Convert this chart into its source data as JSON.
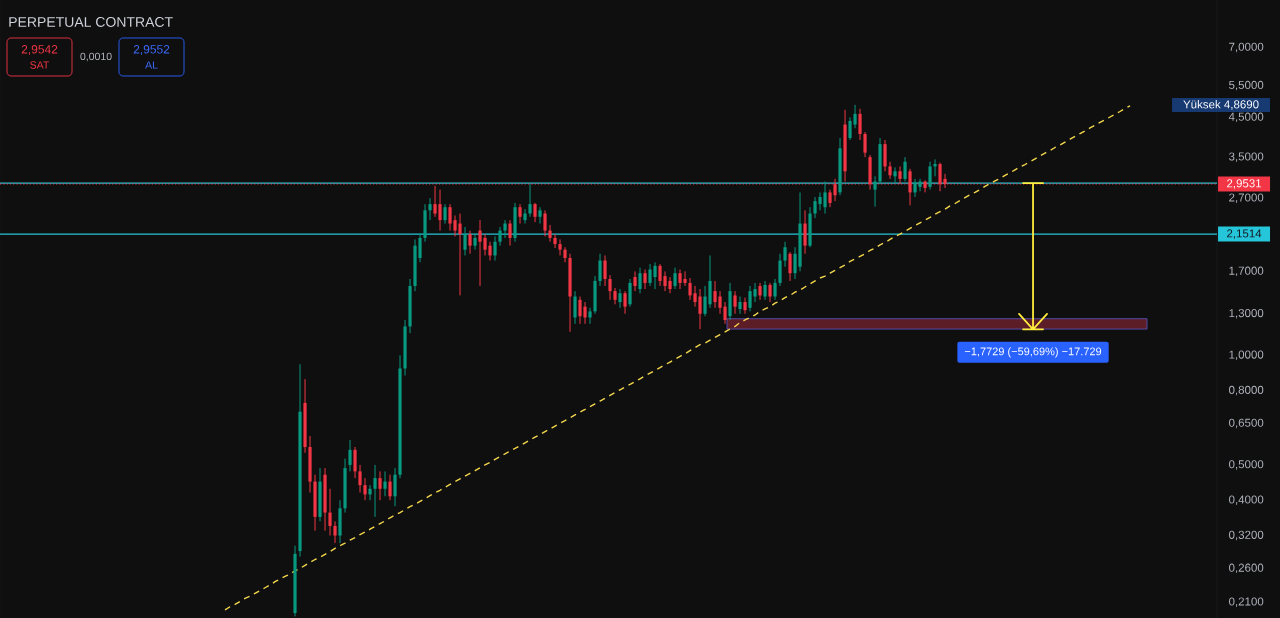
{
  "chart_data": {
    "type": "candlestick",
    "title": "PERPETUAL CONTRACT",
    "categories": [
      null,
      null,
      null,
      null,
      null,
      null,
      null,
      null,
      null,
      null,
      null,
      null,
      null,
      null,
      null,
      null,
      null,
      null,
      null,
      null,
      null,
      null,
      null,
      null,
      null,
      null,
      null,
      null,
      null,
      null,
      null,
      null,
      null,
      null,
      null,
      null,
      null,
      null,
      null,
      null,
      null,
      null,
      null,
      null,
      null,
      null,
      null,
      null,
      null,
      null,
      null,
      null,
      null,
      null,
      null,
      null,
      null,
      null,
      null,
      null,
      null,
      null,
      null,
      null,
      null,
      null,
      null,
      null,
      null,
      null,
      null,
      null,
      null,
      null,
      null,
      null,
      null,
      null,
      null,
      null,
      null,
      null,
      null,
      null,
      null,
      null,
      null,
      null,
      null,
      null,
      null,
      null,
      null,
      null,
      null,
      null,
      null,
      null,
      null,
      null,
      null,
      null,
      null,
      null,
      null,
      null,
      null,
      null,
      null,
      null,
      null,
      null,
      null,
      null,
      null,
      null,
      null,
      null,
      null,
      null,
      null,
      null,
      null,
      null,
      null,
      null,
      null,
      null,
      null,
      null,
      null,
      null,
      null,
      null,
      null,
      null,
      null,
      null,
      null,
      null,
      null,
      null,
      null,
      null,
      null,
      null,
      null,
      null,
      null,
      null,
      null,
      null,
      null,
      null,
      null,
      null,
      null,
      null,
      null,
      null,
      null,
      null,
      null,
      null,
      null,
      null,
      null,
      null,
      null,
      null,
      null,
      null,
      null,
      null,
      null,
      null,
      null,
      null,
      null,
      null,
      null,
      null
    ],
    "ohlc": [
      null,
      null,
      null,
      null,
      null,
      null,
      null,
      null,
      null,
      null,
      null,
      null,
      null,
      null,
      [
        0.196,
        0.3,
        0.192,
        0.285
      ],
      [
        0.29,
        0.945,
        0.28,
        0.7
      ],
      [
        0.74,
        0.86,
        0.54,
        0.56
      ],
      [
        0.56,
        0.6,
        0.42,
        0.45
      ],
      [
        0.45,
        0.47,
        0.33,
        0.36
      ],
      [
        0.36,
        0.49,
        0.35,
        0.45
      ],
      [
        0.47,
        0.49,
        0.33,
        0.37
      ],
      [
        0.37,
        0.43,
        0.32,
        0.34
      ],
      [
        0.34,
        0.35,
        0.305,
        0.32
      ],
      [
        0.32,
        0.4,
        0.305,
        0.38
      ],
      [
        0.38,
        0.52,
        0.37,
        0.49
      ],
      [
        0.5,
        0.585,
        0.48,
        0.55
      ],
      [
        0.55,
        0.56,
        0.46,
        0.48
      ],
      [
        0.48,
        0.5,
        0.42,
        0.44
      ],
      [
        0.44,
        0.46,
        0.4,
        0.415
      ],
      [
        0.415,
        0.44,
        0.4,
        0.43
      ],
      [
        0.43,
        0.5,
        0.36,
        0.46
      ],
      [
        0.46,
        0.48,
        0.4,
        0.43
      ],
      [
        0.43,
        0.48,
        0.41,
        0.45
      ],
      [
        0.45,
        0.47,
        0.4,
        0.41
      ],
      [
        0.41,
        0.49,
        0.385,
        0.47
      ],
      [
        0.47,
        1.0,
        0.46,
        0.92
      ],
      [
        0.92,
        1.25,
        0.88,
        1.2
      ],
      [
        1.2,
        1.62,
        1.15,
        1.55
      ],
      [
        1.55,
        2.08,
        1.5,
        2.0
      ],
      [
        1.85,
        2.16,
        1.8,
        2.1
      ],
      [
        2.1,
        2.6,
        2.05,
        2.5
      ],
      [
        2.5,
        2.7,
        2.35,
        2.6
      ],
      [
        2.6,
        2.92,
        2.4,
        2.45
      ],
      [
        2.6,
        2.85,
        2.2,
        2.35
      ],
      [
        2.35,
        2.6,
        2.3,
        2.55
      ],
      [
        2.55,
        2.6,
        2.2,
        2.3
      ],
      [
        2.35,
        2.42,
        2.12,
        2.2
      ],
      [
        2.3,
        2.45,
        1.46,
        2.15
      ],
      [
        1.95,
        2.25,
        1.88,
        2.15
      ],
      [
        2.15,
        2.2,
        1.9,
        2.0
      ],
      [
        2.0,
        2.15,
        1.95,
        2.1
      ],
      [
        2.2,
        2.35,
        1.55,
        2.05
      ],
      [
        2.1,
        2.15,
        1.88,
        1.95
      ],
      [
        2.0,
        2.05,
        1.82,
        1.88
      ],
      [
        1.88,
        2.12,
        1.82,
        2.05
      ],
      [
        2.05,
        2.25,
        2.0,
        2.2
      ],
      [
        2.2,
        2.35,
        2.1,
        2.3
      ],
      [
        2.3,
        2.35,
        2.0,
        2.1
      ],
      [
        2.1,
        2.62,
        2.05,
        2.55
      ],
      [
        2.55,
        2.6,
        2.3,
        2.4
      ],
      [
        2.35,
        2.52,
        2.3,
        2.45
      ],
      [
        2.45,
        2.95,
        2.4,
        2.6
      ],
      [
        2.6,
        2.62,
        2.32,
        2.4
      ],
      [
        2.4,
        2.55,
        2.3,
        2.5
      ],
      [
        2.45,
        2.5,
        2.12,
        2.2
      ],
      [
        2.2,
        2.28,
        2.05,
        2.1
      ],
      [
        2.1,
        2.15,
        1.97,
        2.02
      ],
      [
        2.02,
        2.08,
        1.88,
        1.95
      ],
      [
        1.95,
        1.98,
        1.8,
        1.85
      ],
      [
        1.85,
        1.9,
        1.16,
        1.45
      ],
      [
        1.27,
        1.5,
        1.22,
        1.45
      ],
      [
        1.42,
        1.45,
        1.22,
        1.28
      ],
      [
        1.36,
        1.4,
        1.22,
        1.27
      ],
      [
        1.27,
        1.35,
        1.22,
        1.32
      ],
      [
        1.32,
        1.65,
        1.3,
        1.6
      ],
      [
        1.6,
        1.9,
        1.55,
        1.82
      ],
      [
        1.82,
        1.88,
        1.55,
        1.62
      ],
      [
        1.62,
        1.66,
        1.42,
        1.5
      ],
      [
        1.5,
        1.53,
        1.38,
        1.42
      ],
      [
        1.4,
        1.52,
        1.35,
        1.48
      ],
      [
        1.48,
        1.5,
        1.3,
        1.36
      ],
      [
        1.38,
        1.62,
        1.36,
        1.58
      ],
      [
        1.64,
        1.7,
        1.5,
        1.55
      ],
      [
        1.52,
        1.74,
        1.48,
        1.68
      ],
      [
        1.68,
        1.72,
        1.52,
        1.58
      ],
      [
        1.58,
        1.78,
        1.55,
        1.72
      ],
      [
        1.64,
        1.8,
        1.52,
        1.76
      ],
      [
        1.76,
        1.78,
        1.55,
        1.6
      ],
      [
        1.65,
        1.7,
        1.5,
        1.55
      ],
      [
        1.6,
        1.64,
        1.48,
        1.52
      ],
      [
        1.55,
        1.74,
        1.52,
        1.68
      ],
      [
        1.68,
        1.72,
        1.52,
        1.58
      ],
      [
        1.62,
        1.7,
        1.55,
        1.58
      ],
      [
        1.58,
        1.63,
        1.42,
        1.46
      ],
      [
        1.48,
        1.55,
        1.36,
        1.4
      ],
      [
        1.45,
        1.52,
        1.18,
        1.3
      ],
      [
        1.3,
        1.55,
        1.28,
        1.45
      ],
      [
        1.38,
        1.88,
        1.35,
        1.6
      ],
      [
        1.5,
        1.6,
        1.35,
        1.4
      ],
      [
        1.45,
        1.5,
        1.3,
        1.35
      ],
      [
        1.36,
        1.4,
        1.22,
        1.25
      ],
      [
        1.28,
        1.58,
        1.25,
        1.5
      ],
      [
        1.46,
        1.5,
        1.3,
        1.36
      ],
      [
        1.34,
        1.45,
        1.3,
        1.4
      ],
      [
        1.4,
        1.44,
        1.3,
        1.33
      ],
      [
        1.35,
        1.55,
        1.32,
        1.5
      ],
      [
        1.45,
        1.58,
        1.4,
        1.52
      ],
      [
        1.55,
        1.58,
        1.42,
        1.46
      ],
      [
        1.45,
        1.6,
        1.42,
        1.56
      ],
      [
        1.56,
        1.58,
        1.4,
        1.45
      ],
      [
        1.45,
        1.62,
        1.42,
        1.58
      ],
      [
        1.58,
        1.9,
        1.55,
        1.82
      ],
      [
        1.82,
        2.05,
        1.75,
        1.98
      ],
      [
        1.9,
        1.92,
        1.6,
        1.68
      ],
      [
        1.68,
        1.98,
        1.62,
        1.9
      ],
      [
        1.75,
        2.8,
        1.7,
        2.3
      ],
      [
        2.3,
        2.5,
        1.9,
        2.0
      ],
      [
        2.0,
        2.55,
        1.98,
        2.45
      ],
      [
        2.45,
        2.72,
        2.38,
        2.65
      ],
      [
        2.6,
        2.8,
        2.5,
        2.72
      ],
      [
        2.55,
        3.0,
        2.45,
        2.8
      ],
      [
        2.8,
        2.85,
        2.55,
        2.62
      ],
      [
        2.95,
        3.05,
        2.65,
        2.75
      ],
      [
        2.8,
        3.95,
        2.75,
        3.7
      ],
      [
        4.3,
        4.72,
        3.0,
        3.2
      ],
      [
        3.95,
        4.5,
        3.9,
        4.4
      ],
      [
        4.3,
        4.869,
        4.2,
        4.6
      ],
      [
        4.6,
        4.75,
        3.9,
        4.05
      ],
      [
        4.05,
        4.1,
        3.5,
        3.6
      ],
      [
        3.5,
        3.55,
        2.85,
        2.95
      ],
      [
        2.85,
        3.1,
        2.56,
        3.0
      ],
      [
        3.0,
        3.95,
        2.95,
        3.8
      ],
      [
        3.8,
        3.9,
        3.2,
        3.3
      ],
      [
        3.3,
        3.4,
        3.05,
        3.12
      ],
      [
        3.1,
        3.28,
        2.98,
        3.2
      ],
      [
        3.2,
        3.3,
        2.95,
        3.05
      ],
      [
        3.05,
        3.5,
        3.0,
        3.4
      ],
      [
        3.2,
        3.25,
        2.58,
        2.8
      ],
      [
        2.8,
        3.05,
        2.72,
        2.98
      ],
      [
        2.9,
        3.05,
        2.82,
        3.0
      ],
      [
        3.0,
        3.02,
        2.8,
        2.88
      ],
      [
        2.9,
        3.4,
        2.85,
        3.3
      ],
      [
        3.3,
        3.45,
        3.1,
        3.35
      ],
      [
        3.35,
        3.38,
        2.82,
        2.95
      ],
      [
        3.05,
        3.15,
        2.88,
        2.9531
      ],
      null,
      null,
      null,
      null,
      null,
      null,
      null,
      null,
      null,
      null,
      null,
      null,
      null,
      null,
      null,
      null,
      null,
      null,
      null,
      null,
      null,
      null,
      null,
      null,
      null,
      null,
      null,
      null,
      null,
      null,
      null,
      null,
      null,
      null,
      null,
      null,
      null
    ],
    "colors": [
      null,
      null,
      null,
      null,
      null,
      null,
      null,
      null,
      null,
      null,
      null,
      null,
      null,
      null,
      "#089981",
      "#089981",
      "#f23645",
      "#f23645",
      "#f23645",
      "#089981",
      "#f23645",
      "#f23645",
      "#f23645",
      "#089981",
      "#089981",
      "#089981",
      "#f23645",
      "#f23645",
      "#f23645",
      "#089981",
      "#089981",
      "#f23645",
      "#089981",
      "#f23645",
      "#089981",
      "#089981",
      "#089981",
      "#089981",
      "#089981",
      "#089981",
      "#089981",
      "#089981",
      "#f23645",
      "#f23645",
      "#089981",
      "#f23645",
      "#f23645",
      "#f23645",
      "#089981",
      "#f23645",
      "#089981",
      "#f23645",
      "#f23645",
      "#f23645",
      "#089981",
      "#089981",
      "#089981",
      "#f23645",
      "#089981",
      "#f23645",
      "#089981",
      "#089981",
      "#f23645",
      "#089981",
      "#f23645",
      "#f23645",
      "#f23645",
      "#f23645",
      "#f23645",
      "#f23645",
      "#089981",
      "#f23645",
      "#f23645",
      "#089981",
      "#089981",
      "#089981",
      "#f23645",
      "#f23645",
      "#f23645",
      "#089981",
      "#f23645",
      "#089981",
      "#f23645",
      "#089981",
      "#f23645",
      "#089981",
      "#089981",
      "#f23645",
      "#f23645",
      "#f23645",
      "#089981",
      "#f23645",
      "#f23645",
      "#f23645",
      "#f23645",
      "#f23645",
      "#089981",
      "#089981",
      "#f23645",
      "#f23645",
      "#f23645",
      "#089981",
      "#f23645",
      "#089981",
      "#f23645",
      "#089981",
      "#089981",
      "#f23645",
      "#089981",
      "#f23645",
      "#089981",
      "#089981",
      "#089981",
      "#f23645",
      "#089981",
      "#089981",
      "#f23645",
      "#089981",
      "#089981",
      "#089981",
      "#089981",
      "#f23645",
      "#f23645",
      "#089981",
      "#f23645",
      "#089981",
      "#089981",
      "#f23645",
      "#f23645",
      "#f23645",
      "#089981",
      "#089981",
      "#f23645",
      "#f23645",
      "#089981",
      "#f23645",
      "#089981",
      "#f23645",
      "#089981",
      "#089981",
      "#f23645",
      "#089981",
      "#089981",
      "#f23645",
      "#f23645",
      null,
      null,
      null,
      null,
      null,
      null,
      null,
      null,
      null,
      null,
      null,
      null,
      null,
      null,
      null,
      null,
      null,
      null,
      null,
      null,
      null,
      null,
      null,
      null,
      null,
      null,
      null,
      null,
      null,
      null,
      null,
      null,
      null,
      null,
      null,
      null,
      null
    ],
    "series": [
      {
        "type": "line",
        "color": "#f2d64b",
        "line_style": "dashed",
        "values": [
          0.2,
          0.204,
          0.207,
          0.211,
          0.215,
          0.218,
          0.222,
          0.226,
          0.23,
          0.234,
          0.239,
          0.243,
          0.247,
          0.251,
          0.256,
          0.26,
          0.265,
          0.27,
          0.275,
          0.279,
          0.284,
          0.289,
          0.295,
          0.3,
          0.305,
          0.311,
          0.316,
          0.322,
          0.327,
          0.333,
          0.339,
          0.345,
          0.351,
          0.358,
          0.364,
          0.37,
          0.377,
          0.384,
          0.39,
          0.397,
          0.404,
          0.412,
          0.419,
          0.426,
          0.434,
          0.442,
          0.45,
          0.458,
          0.466,
          0.474,
          0.482,
          0.491,
          0.5,
          0.508,
          0.518,
          0.527,
          0.536,
          0.546,
          0.555,
          0.565,
          0.575,
          0.585,
          0.596,
          0.606,
          0.617,
          0.628,
          0.639,
          0.651,
          0.662,
          0.674,
          0.686,
          0.698,
          0.71,
          0.723,
          0.736,
          0.749,
          0.762,
          0.776,
          0.79,
          0.804,
          0.818,
          0.832,
          0.847,
          0.862,
          0.878,
          0.893,
          0.909,
          0.925,
          0.942,
          0.958,
          0.975,
          0.993,
          1.01,
          1.03,
          1.05,
          1.07,
          1.08,
          1.1,
          1.12,
          1.14,
          1.16,
          1.18,
          1.2,
          1.23,
          1.25,
          1.27,
          1.29,
          1.32,
          1.34,
          1.36,
          1.39,
          1.41,
          1.44,
          1.46,
          1.49,
          1.51,
          1.54,
          1.57,
          1.6,
          1.63,
          1.65,
          1.68,
          1.71,
          1.74,
          1.77,
          1.81,
          1.84,
          1.87,
          1.9,
          1.94,
          1.97,
          2.01,
          2.04,
          2.08,
          2.12,
          2.15,
          2.19,
          2.23,
          2.27,
          2.31,
          2.35,
          2.39,
          2.44,
          2.48,
          2.52,
          2.57,
          2.61,
          2.66,
          2.71,
          2.76,
          2.8,
          2.85,
          2.91,
          2.96,
          3.01,
          3.06,
          3.12,
          3.17,
          3.23,
          3.29,
          3.34,
          3.4,
          3.46,
          3.53,
          3.59,
          3.65,
          3.72,
          3.78,
          3.85,
          3.92,
          3.99,
          4.06,
          4.13,
          4.21,
          4.28,
          4.36,
          4.43,
          4.51,
          4.59,
          4.67,
          4.76,
          4.84
        ]
      }
    ],
    "ylim": [
      0.19,
      9.45
    ],
    "yticks": [
      {
        "value": 0.21,
        "label": "0,2100"
      },
      {
        "value": 0.26,
        "label": "0,2600"
      },
      {
        "value": 0.32,
        "label": "0,3200"
      },
      {
        "value": 0.4,
        "label": "0,4000"
      },
      {
        "value": 0.5,
        "label": "0,5000"
      },
      {
        "value": 0.65,
        "label": "0,6500"
      },
      {
        "value": 0.8,
        "label": "0,8000"
      },
      {
        "value": 1.0,
        "label": "1,0000"
      },
      {
        "value": 1.3,
        "label": "1,3000"
      },
      {
        "value": 1.7,
        "label": "1,7000"
      },
      {
        "value": 2.7,
        "label": "2,7000"
      },
      {
        "value": 3.5,
        "label": "3,5000"
      },
      {
        "value": 4.5,
        "label": "4,5000"
      },
      {
        "value": 5.5,
        "label": "5,5000"
      },
      {
        "value": 7.0,
        "label": "7,0000"
      }
    ],
    "log": true,
    "ref_lines": [
      {
        "axis": "y",
        "value": 2.97,
        "color": "#26c6da"
      },
      {
        "axis": "y",
        "value": 2.1514,
        "label": "2,1514",
        "color": "#26c6da"
      },
      {
        "axis": "y",
        "value": 2.9531,
        "label": "2,9531",
        "color": "#f23645",
        "line_style": "dotted"
      }
    ],
    "bands": [
      {
        "axis": "y",
        "from": 1.18,
        "to": 1.26,
        "color": "#5c1d27"
      }
    ],
    "annotations": [
      "2,9542",
      "SAT",
      "0,0010",
      "2,9552",
      "AL",
      "Yüksek 4,8690",
      {
        "text": "−1,7729 (−59,69%) −17.729",
        "y": 1.197
      }
    ]
  }
}
